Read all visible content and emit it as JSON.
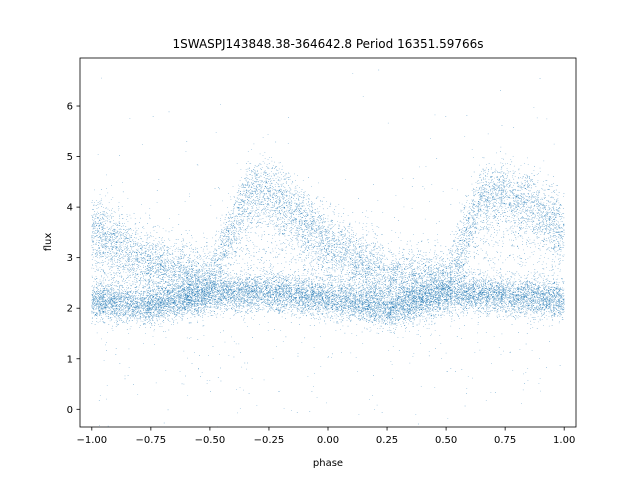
{
  "chart_data": {
    "type": "scatter",
    "title": "1SWASPJ143848.38-364642.8 Period 16351.59766s",
    "xlabel": "phase",
    "ylabel": "flux",
    "xlim": [
      -1.05,
      1.05
    ],
    "ylim": [
      -0.35,
      6.95
    ],
    "xticks": [
      -1.0,
      -0.75,
      -0.5,
      -0.25,
      0.0,
      0.25,
      0.5,
      0.75,
      1.0
    ],
    "xtick_labels": [
      "−1.00",
      "−0.75",
      "−0.50",
      "−0.25",
      "0.00",
      "0.25",
      "0.50",
      "0.75",
      "1.00"
    ],
    "yticks": [
      0,
      1,
      2,
      3,
      4,
      5,
      6
    ],
    "ytick_labels": [
      "0",
      "1",
      "2",
      "3",
      "4",
      "5",
      "6"
    ],
    "grid": false,
    "marker_color": "#1f77b4",
    "marker_size": 0.5,
    "series": [
      {
        "description_points": "dense phase-folded light curve, folded twice over phase -1 to 1",
        "baseline_band": {
          "phase": [
            -1.0,
            -0.75,
            -0.5,
            -0.25,
            0.0,
            0.25,
            0.5,
            0.75,
            1.0
          ],
          "flux": [
            2.15,
            2.05,
            2.3,
            2.3,
            2.2,
            2.0,
            2.3,
            2.25,
            2.15
          ]
        },
        "upper_branch": {
          "phase": [
            -1.0,
            -0.9,
            -0.75,
            -0.5,
            -0.35,
            -0.25,
            -0.1,
            0.0,
            0.25,
            0.5,
            0.65,
            0.75,
            0.9,
            1.0
          ],
          "flux": [
            3.6,
            3.3,
            2.9,
            2.5,
            4.2,
            4.3,
            3.7,
            3.3,
            2.6,
            2.5,
            4.2,
            4.3,
            3.9,
            3.6
          ]
        }
      }
    ]
  }
}
